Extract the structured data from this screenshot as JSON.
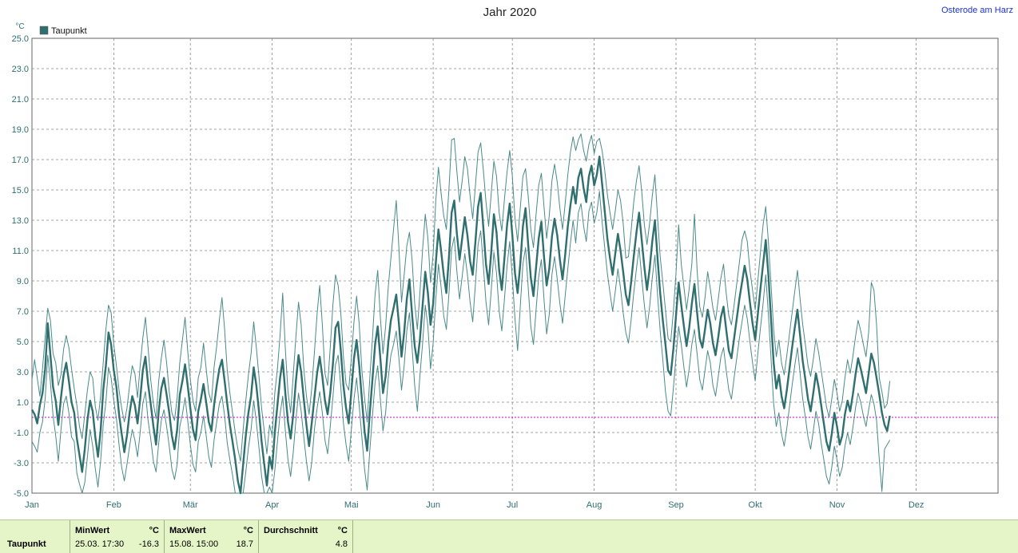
{
  "chart_data": {
    "type": "line",
    "title": "Jahr 2020",
    "location": "Osterode am Harz",
    "ylabel": "°C",
    "ylim": [
      -5,
      25
    ],
    "yticks": [
      "25.0",
      "23.0",
      "21.0",
      "19.0",
      "17.0",
      "15.0",
      "13.0",
      "11.0",
      "9.0",
      "7.0",
      "5.0",
      "3.0",
      "1.0",
      "-1.0",
      "-3.0",
      "-5.0"
    ],
    "xlabels": [
      "Jan",
      "Feb",
      "Mär",
      "Apr",
      "Mai",
      "Jun",
      "Jul",
      "Aug",
      "Sep",
      "Okt",
      "Nov",
      "Dez"
    ],
    "month_start_day": [
      1,
      32,
      61,
      92,
      122,
      153,
      183,
      214,
      245,
      275,
      306,
      336
    ],
    "days_in_year": 366,
    "grid": true,
    "legend": {
      "position": "top-left",
      "label": "Taupunkt"
    },
    "reference_line": {
      "value": 0,
      "color": "#cc00cc"
    },
    "series": [
      {
        "name": "Taupunkt",
        "role": "mean",
        "color": "#2f6f6f",
        "values": [
          0.5,
          0.2,
          -0.4,
          0.8,
          1.6,
          3.2,
          6.2,
          4.1,
          2.0,
          1.1,
          -0.5,
          1.3,
          2.8,
          3.6,
          2.4,
          1.0,
          0.3,
          -1.4,
          -2.5,
          -3.6,
          -2.1,
          -0.2,
          1.1,
          0.4,
          -1.3,
          -2.6,
          -0.9,
          1.8,
          3.4,
          5.6,
          4.8,
          3.1,
          2.0,
          0.2,
          -1.1,
          -2.3,
          -1.2,
          0.3,
          1.4,
          0.8,
          -0.4,
          1.2,
          3.1,
          4.0,
          2.2,
          0.9,
          -0.6,
          -1.8,
          0.4,
          1.9,
          2.6,
          1.5,
          0.3,
          -1.2,
          -2.1,
          -0.8,
          1.5,
          2.4,
          3.5,
          2.1,
          0.6,
          -0.8,
          -1.5,
          0.4,
          1.2,
          2.2,
          1.0,
          -0.3,
          -0.9,
          0.8,
          2.1,
          3.2,
          3.8,
          2.4,
          0.9,
          -0.5,
          -1.6,
          -2.8,
          -4.2,
          -5.0,
          -3.1,
          -1.2,
          0.3,
          1.4,
          3.3,
          2.1,
          0.4,
          -1.6,
          -3.1,
          -4.5,
          -2.6,
          -3.4,
          -1.0,
          0.8,
          2.6,
          3.8,
          1.6,
          -0.3,
          -1.4,
          0.2,
          2.4,
          4.1,
          3.0,
          1.2,
          -0.5,
          -1.9,
          -0.4,
          1.3,
          2.9,
          4.0,
          2.7,
          1.1,
          0.2,
          1.6,
          3.5,
          5.9,
          6.3,
          4.4,
          2.1,
          0.6,
          -0.4,
          1.7,
          3.9,
          5.1,
          3.4,
          1.2,
          -0.9,
          -2.2,
          0.3,
          2.5,
          4.8,
          6.0,
          3.9,
          1.6,
          2.7,
          4.9,
          6.4,
          7.2,
          8.1,
          6.2,
          4.0,
          5.6,
          7.8,
          9.1,
          6.8,
          4.7,
          3.6,
          5.2,
          7.4,
          9.6,
          8.2,
          6.1,
          7.5,
          10.2,
          12.4,
          11.0,
          9.4,
          8.2,
          10.6,
          13.5,
          14.3,
          12.1,
          10.4,
          11.8,
          13.2,
          12.0,
          10.3,
          9.4,
          11.6,
          13.9,
          14.8,
          12.5,
          10.1,
          8.8,
          10.9,
          13.4,
          12.2,
          9.7,
          8.4,
          10.5,
          12.7,
          14.1,
          12.0,
          9.5,
          8.2,
          10.1,
          12.6,
          13.8,
          11.4,
          9.2,
          8.0,
          9.9,
          11.8,
          12.9,
          10.6,
          8.7,
          9.8,
          11.9,
          13.1,
          12.0,
          10.4,
          9.1,
          10.7,
          12.6,
          14.0,
          15.2,
          14.1,
          15.8,
          16.4,
          15.1,
          14.2,
          15.9,
          16.6,
          15.3,
          16.0,
          17.2,
          15.4,
          13.6,
          11.8,
          10.5,
          9.4,
          10.8,
          12.1,
          11.0,
          9.6,
          8.1,
          7.4,
          8.9,
          10.6,
          12.2,
          13.5,
          11.7,
          9.9,
          8.4,
          9.8,
          11.6,
          13.0,
          10.5,
          8.2,
          6.4,
          4.8,
          3.1,
          2.8,
          4.5,
          6.7,
          8.9,
          7.4,
          6.0,
          4.7,
          5.9,
          7.5,
          8.8,
          6.9,
          5.2,
          4.6,
          5.8,
          7.1,
          6.2,
          4.9,
          4.1,
          5.3,
          6.6,
          7.3,
          5.8,
          4.4,
          3.9,
          5.2,
          6.5,
          7.8,
          8.9,
          10.0,
          9.1,
          7.6,
          6.2,
          5.1,
          6.8,
          8.5,
          10.1,
          11.7,
          9.4,
          6.5,
          3.6,
          1.9,
          2.8,
          1.4,
          0.6,
          1.8,
          3.2,
          4.6,
          5.9,
          7.1,
          5.4,
          3.7,
          2.5,
          1.2,
          0.4,
          1.6,
          2.9,
          2.0,
          0.8,
          -0.4,
          -1.6,
          -2.2,
          -1.1,
          0.3,
          -0.6,
          -1.8,
          -1.2,
          0.2,
          1.1,
          0.4,
          1.5,
          2.8,
          3.9,
          3.2,
          2.4,
          1.6,
          2.9,
          4.2,
          3.6,
          2.6,
          1.5,
          0.3,
          -0.5,
          -0.9,
          0.1
        ]
      },
      {
        "name": "Taupunkt",
        "role": "max",
        "color": "#4a8a8a",
        "values": [
          2.5,
          3.8,
          2.6,
          1.4,
          3.2,
          5.3,
          7.2,
          6.4,
          4.2,
          3.6,
          2.1,
          2.8,
          4.5,
          5.4,
          4.6,
          3.2,
          1.9,
          0.8,
          -0.6,
          -1.4,
          0.2,
          1.8,
          3.0,
          2.6,
          0.7,
          -0.2,
          1.4,
          3.6,
          5.8,
          7.4,
          6.9,
          4.8,
          3.4,
          1.8,
          0.6,
          -0.3,
          0.6,
          2.1,
          3.4,
          2.9,
          1.3,
          3.4,
          5.2,
          6.6,
          4.6,
          2.5,
          0.9,
          -0.1,
          2.4,
          3.9,
          5.1,
          3.6,
          1.7,
          0.3,
          -0.2,
          1.3,
          3.6,
          5.1,
          6.6,
          4.4,
          2.5,
          1.1,
          0.4,
          2.6,
          3.3,
          4.9,
          3.2,
          1.6,
          1.0,
          3.3,
          4.7,
          6.4,
          7.9,
          5.8,
          3.1,
          1.6,
          0.3,
          -1.0,
          -2.1,
          -2.9,
          -0.8,
          1.1,
          2.8,
          4.2,
          6.3,
          4.6,
          2.7,
          0.6,
          -0.9,
          -2.4,
          -0.5,
          -1.2,
          1.6,
          3.2,
          5.4,
          8.2,
          4.5,
          1.7,
          0.3,
          2.8,
          5.3,
          7.6,
          6.1,
          3.2,
          1.4,
          0.2,
          1.9,
          4.3,
          6.8,
          8.7,
          6.1,
          2.9,
          2.1,
          4.6,
          7.4,
          9.4,
          8.7,
          6.9,
          4.0,
          2.2,
          1.8,
          3.9,
          6.3,
          8.0,
          6.1,
          3.1,
          1.3,
          -0.3,
          2.6,
          5.2,
          8.1,
          9.7,
          6.6,
          4.2,
          6.0,
          8.6,
          10.5,
          12.4,
          14.3,
          11.2,
          7.6,
          9.4,
          11.3,
          12.2,
          10.4,
          7.5,
          5.8,
          8.3,
          11.1,
          13.4,
          11.8,
          8.9,
          10.8,
          14.3,
          16.5,
          14.8,
          13.3,
          12.4,
          15.1,
          18.3,
          18.4,
          16.2,
          14.2,
          15.6,
          17.2,
          16.4,
          14.6,
          13.1,
          15.3,
          17.5,
          18.1,
          16.3,
          14.2,
          12.6,
          14.8,
          16.9,
          15.9,
          13.5,
          12.3,
          14.4,
          16.2,
          17.6,
          15.9,
          13.1,
          11.6,
          13.8,
          15.9,
          16.4,
          14.6,
          12.4,
          11.2,
          13.4,
          15.3,
          16.1,
          13.9,
          11.8,
          13.3,
          15.6,
          16.7,
          15.5,
          13.8,
          12.4,
          14.1,
          16.0,
          17.5,
          18.5,
          17.6,
          18.3,
          18.7,
          17.6,
          16.9,
          18.0,
          18.6,
          17.4,
          18.2,
          18.4,
          17.6,
          16.3,
          14.7,
          13.5,
          12.4,
          13.6,
          15.0,
          14.3,
          12.8,
          10.5,
          10.6,
          12.3,
          14.2,
          15.6,
          16.6,
          14.9,
          12.7,
          11.4,
          12.8,
          14.6,
          16.0,
          13.2,
          10.6,
          8.9,
          7.1,
          5.2,
          5.0,
          7.0,
          9.5,
          12.7,
          10.1,
          8.6,
          7.1,
          8.5,
          10.1,
          13.4,
          9.7,
          7.3,
          6.6,
          7.9,
          9.6,
          8.5,
          7.2,
          6.4,
          7.8,
          9.2,
          10.1,
          8.2,
          6.7,
          6.1,
          7.4,
          8.8,
          10.2,
          11.7,
          12.3,
          11.6,
          9.7,
          8.4,
          7.1,
          9.0,
          10.9,
          12.7,
          13.9,
          11.6,
          8.8,
          5.8,
          4.0,
          5.1,
          3.6,
          2.8,
          4.1,
          5.5,
          6.9,
          8.3,
          9.7,
          7.8,
          6.1,
          4.8,
          3.4,
          2.7,
          3.8,
          5.2,
          4.3,
          3.1,
          1.9,
          0.7,
          0.0,
          1.2,
          2.5,
          1.6,
          0.4,
          1.1,
          2.6,
          3.8,
          2.9,
          4.0,
          5.3,
          6.4,
          5.7,
          4.8,
          4.0,
          5.6,
          8.9,
          8.4,
          6.1,
          2.6,
          1.7,
          0.6,
          0.9,
          2.4
        ]
      },
      {
        "name": "Taupunkt",
        "role": "min",
        "color": "#4a8a8a",
        "values": [
          -1.6,
          -1.9,
          -2.3,
          -1.0,
          -0.3,
          1.2,
          4.1,
          2.3,
          0.1,
          -1.2,
          -2.9,
          -0.8,
          0.9,
          1.4,
          0.3,
          -1.3,
          -1.6,
          -3.7,
          -4.4,
          -5.0,
          -4.3,
          -2.6,
          -0.8,
          -1.9,
          -3.4,
          -4.6,
          -2.9,
          -0.5,
          1.0,
          3.3,
          2.6,
          1.1,
          -0.1,
          -1.8,
          -3.3,
          -4.2,
          -3.1,
          -1.9,
          -0.8,
          -1.5,
          -2.6,
          -1.0,
          0.9,
          1.7,
          -0.2,
          -1.4,
          -2.9,
          -3.6,
          -1.7,
          -0.2,
          0.5,
          -0.6,
          -1.9,
          -3.4,
          -4.1,
          -3.1,
          -0.6,
          0.2,
          1.3,
          -0.2,
          -1.8,
          -3.1,
          -3.6,
          -1.6,
          -1.0,
          0.1,
          -1.2,
          -2.6,
          -3.3,
          -1.5,
          -0.3,
          0.9,
          1.4,
          0.1,
          -1.7,
          -2.8,
          -3.8,
          -5.0,
          -5.0,
          -5.0,
          -5.0,
          -3.6,
          -2.0,
          -0.8,
          1.1,
          -0.3,
          -2.0,
          -3.9,
          -5.0,
          -5.0,
          -4.6,
          -5.0,
          -3.5,
          -1.6,
          0.2,
          1.4,
          -0.9,
          -2.8,
          -3.9,
          -2.3,
          -0.2,
          1.6,
          0.4,
          -1.3,
          -2.9,
          -4.2,
          -3.0,
          -0.8,
          0.6,
          1.7,
          0.3,
          -1.5,
          -2.4,
          -0.6,
          1.3,
          3.5,
          4.1,
          2.0,
          -0.4,
          -1.8,
          -2.9,
          -0.8,
          1.2,
          2.6,
          0.7,
          -1.3,
          -3.4,
          -4.8,
          -2.2,
          0.1,
          2.3,
          3.4,
          1.2,
          -0.9,
          0.3,
          2.6,
          4.1,
          4.8,
          5.7,
          3.9,
          1.8,
          3.4,
          5.7,
          6.9,
          4.6,
          2.1,
          0.4,
          2.8,
          4.9,
          7.4,
          6.0,
          3.2,
          4.9,
          7.8,
          10.1,
          8.6,
          6.7,
          5.8,
          8.2,
          11.1,
          11.9,
          9.6,
          7.8,
          9.3,
          10.8,
          9.4,
          7.6,
          6.3,
          8.8,
          11.4,
          12.3,
          10.0,
          7.6,
          6.1,
          8.4,
          10.9,
          9.5,
          7.0,
          5.7,
          7.8,
          10.0,
          11.6,
          9.2,
          6.5,
          4.4,
          7.3,
          10.1,
          11.2,
          8.6,
          6.0,
          4.8,
          7.1,
          9.3,
          10.4,
          7.8,
          5.5,
          6.8,
          9.4,
          10.6,
          9.1,
          7.5,
          6.2,
          8.0,
          9.8,
          11.5,
          13.0,
          11.5,
          13.5,
          14.1,
          12.6,
          11.6,
          13.6,
          14.2,
          12.8,
          13.5,
          14.9,
          12.9,
          11.2,
          9.5,
          8.2,
          7.0,
          8.3,
          9.8,
          8.5,
          6.9,
          5.6,
          4.9,
          6.4,
          8.2,
          9.8,
          11.2,
          9.2,
          7.4,
          5.9,
          7.3,
          9.2,
          10.7,
          8.1,
          5.7,
          3.8,
          1.7,
          0.4,
          0.1,
          1.9,
          4.0,
          6.0,
          4.8,
          3.3,
          2.0,
          3.2,
          4.8,
          5.8,
          4.2,
          2.5,
          1.8,
          3.1,
          4.4,
          3.6,
          2.1,
          1.4,
          2.7,
          4.0,
          4.6,
          3.1,
          1.8,
          1.2,
          2.6,
          3.9,
          5.2,
          6.3,
          7.4,
          6.5,
          5.0,
          3.6,
          2.4,
          4.2,
          5.9,
          7.5,
          9.4,
          6.8,
          3.9,
          0.9,
          -0.6,
          0.3,
          -1.1,
          -1.9,
          -0.7,
          0.7,
          2.1,
          3.4,
          4.6,
          2.9,
          1.2,
          0.0,
          -1.3,
          -2.1,
          -0.9,
          0.4,
          -0.4,
          -1.7,
          -2.8,
          -3.9,
          -4.4,
          -3.3,
          -1.9,
          -2.8,
          -3.9,
          -3.3,
          -1.9,
          -1.0,
          -1.8,
          -0.7,
          0.6,
          1.6,
          1.0,
          0.1,
          -0.6,
          0.5,
          1.5,
          0.9,
          -0.2,
          -2.8,
          -4.9,
          -2.1,
          -1.8,
          -1.5
        ]
      }
    ]
  },
  "footer": {
    "series_label": "Taupunkt",
    "min": {
      "header": "MinWert",
      "unit": "°C",
      "time": "25.03.  17:30",
      "value": "-16.3"
    },
    "max": {
      "header": "MaxWert",
      "unit": "°C",
      "time": "15.08.  15:00",
      "value": "18.7"
    },
    "avg": {
      "header": "Durchschnitt",
      "unit": "°C",
      "value": "4.8"
    }
  }
}
